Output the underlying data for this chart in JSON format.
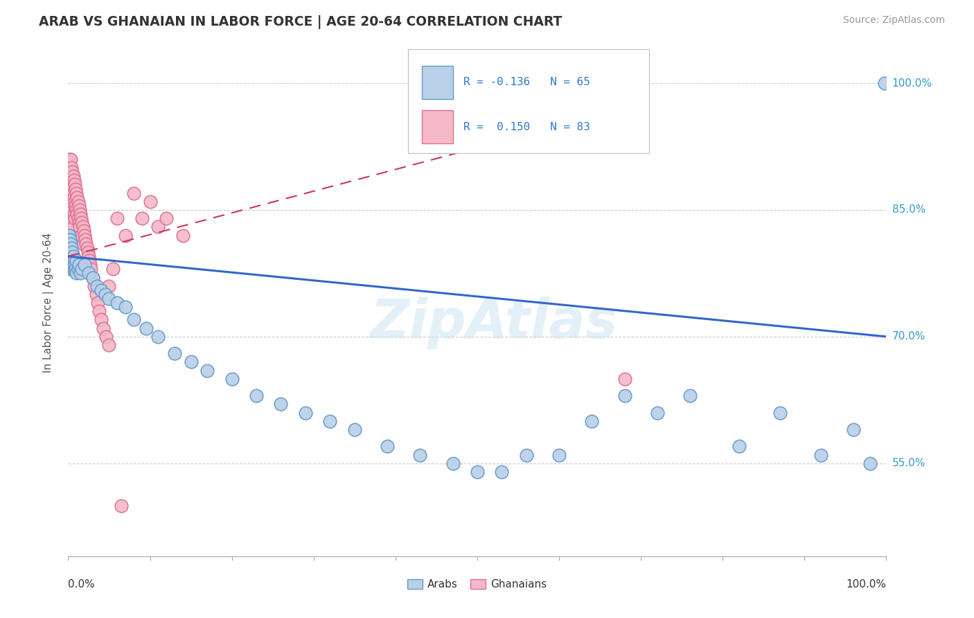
{
  "title": "ARAB VS GHANAIAN IN LABOR FORCE | AGE 20-64 CORRELATION CHART",
  "source": "Source: ZipAtlas.com",
  "ylabel": "In Labor Force | Age 20-64",
  "xlim": [
    0.0,
    1.0
  ],
  "ylim": [
    0.44,
    1.04
  ],
  "xticks": [
    0.0,
    1.0
  ],
  "xticklabels": [
    "0.0%",
    "100.0%"
  ],
  "ytick_positions": [
    0.55,
    0.7,
    0.85,
    1.0
  ],
  "ytick_labels": [
    "55.0%",
    "70.0%",
    "85.0%",
    "100.0%"
  ],
  "arab_color": "#b8d0e8",
  "arab_edge_color": "#6699cc",
  "ghanaian_color": "#f4b8c8",
  "ghanaian_edge_color": "#e07090",
  "arab_line_color": "#3366cc",
  "ghanaian_line_color": "#cc3366",
  "arab_R": -0.136,
  "arab_N": 65,
  "ghanaian_R": 0.15,
  "ghanaian_N": 83,
  "legend_label_arab": "Arabs",
  "legend_label_ghanaian": "Ghanaians",
  "watermark": "ZipAtlas",
  "arab_line_x0": 0.0,
  "arab_line_y0": 0.795,
  "arab_line_x1": 1.0,
  "arab_line_y1": 0.7,
  "gh_line_x0": 0.0,
  "gh_line_y0": 0.795,
  "gh_line_x1": 0.68,
  "gh_line_y1": 0.97,
  "arab_scatter_x": [
    0.001,
    0.001,
    0.001,
    0.002,
    0.002,
    0.002,
    0.002,
    0.003,
    0.003,
    0.003,
    0.004,
    0.004,
    0.004,
    0.005,
    0.005,
    0.006,
    0.006,
    0.007,
    0.007,
    0.008,
    0.009,
    0.01,
    0.01,
    0.012,
    0.013,
    0.015,
    0.017,
    0.02,
    0.025,
    0.03,
    0.035,
    0.04,
    0.045,
    0.05,
    0.06,
    0.07,
    0.08,
    0.095,
    0.11,
    0.13,
    0.15,
    0.17,
    0.2,
    0.23,
    0.26,
    0.29,
    0.32,
    0.35,
    0.39,
    0.43,
    0.47,
    0.5,
    0.53,
    0.56,
    0.6,
    0.64,
    0.68,
    0.72,
    0.76,
    0.82,
    0.87,
    0.92,
    0.96,
    0.98,
    0.998
  ],
  "arab_scatter_y": [
    0.82,
    0.81,
    0.8,
    0.815,
    0.805,
    0.795,
    0.78,
    0.81,
    0.8,
    0.79,
    0.805,
    0.795,
    0.782,
    0.8,
    0.79,
    0.795,
    0.785,
    0.79,
    0.78,
    0.785,
    0.78,
    0.79,
    0.775,
    0.78,
    0.785,
    0.775,
    0.78,
    0.785,
    0.775,
    0.77,
    0.76,
    0.755,
    0.75,
    0.745,
    0.74,
    0.735,
    0.72,
    0.71,
    0.7,
    0.68,
    0.67,
    0.66,
    0.65,
    0.63,
    0.62,
    0.61,
    0.6,
    0.59,
    0.57,
    0.56,
    0.55,
    0.54,
    0.54,
    0.56,
    0.56,
    0.6,
    0.63,
    0.61,
    0.63,
    0.57,
    0.61,
    0.56,
    0.59,
    0.55,
    1.0
  ],
  "ghanaian_scatter_x": [
    0.001,
    0.001,
    0.001,
    0.001,
    0.001,
    0.002,
    0.002,
    0.002,
    0.002,
    0.002,
    0.003,
    0.003,
    0.003,
    0.003,
    0.003,
    0.004,
    0.004,
    0.004,
    0.004,
    0.005,
    0.005,
    0.005,
    0.005,
    0.006,
    0.006,
    0.006,
    0.006,
    0.007,
    0.007,
    0.007,
    0.008,
    0.008,
    0.008,
    0.009,
    0.009,
    0.01,
    0.01,
    0.011,
    0.011,
    0.012,
    0.012,
    0.013,
    0.013,
    0.014,
    0.014,
    0.015,
    0.016,
    0.016,
    0.017,
    0.018,
    0.018,
    0.019,
    0.02,
    0.021,
    0.022,
    0.023,
    0.024,
    0.025,
    0.026,
    0.027,
    0.028,
    0.03,
    0.032,
    0.034,
    0.036,
    0.038,
    0.04,
    0.043,
    0.046,
    0.05,
    0.055,
    0.06,
    0.065,
    0.07,
    0.08,
    0.09,
    0.1,
    0.11,
    0.12,
    0.14,
    0.015,
    0.05,
    0.68
  ],
  "ghanaian_scatter_y": [
    0.87,
    0.89,
    0.91,
    0.86,
    0.84,
    0.9,
    0.88,
    0.86,
    0.84,
    0.82,
    0.91,
    0.89,
    0.87,
    0.85,
    0.83,
    0.9,
    0.88,
    0.86,
    0.84,
    0.895,
    0.875,
    0.855,
    0.835,
    0.89,
    0.87,
    0.85,
    0.83,
    0.885,
    0.865,
    0.845,
    0.88,
    0.86,
    0.84,
    0.875,
    0.855,
    0.87,
    0.85,
    0.865,
    0.845,
    0.86,
    0.84,
    0.855,
    0.835,
    0.85,
    0.83,
    0.845,
    0.84,
    0.82,
    0.835,
    0.83,
    0.81,
    0.825,
    0.82,
    0.815,
    0.81,
    0.805,
    0.8,
    0.795,
    0.79,
    0.785,
    0.78,
    0.77,
    0.76,
    0.75,
    0.74,
    0.73,
    0.72,
    0.71,
    0.7,
    0.69,
    0.78,
    0.84,
    0.5,
    0.82,
    0.87,
    0.84,
    0.86,
    0.83,
    0.84,
    0.82,
    0.785,
    0.76,
    0.65
  ]
}
